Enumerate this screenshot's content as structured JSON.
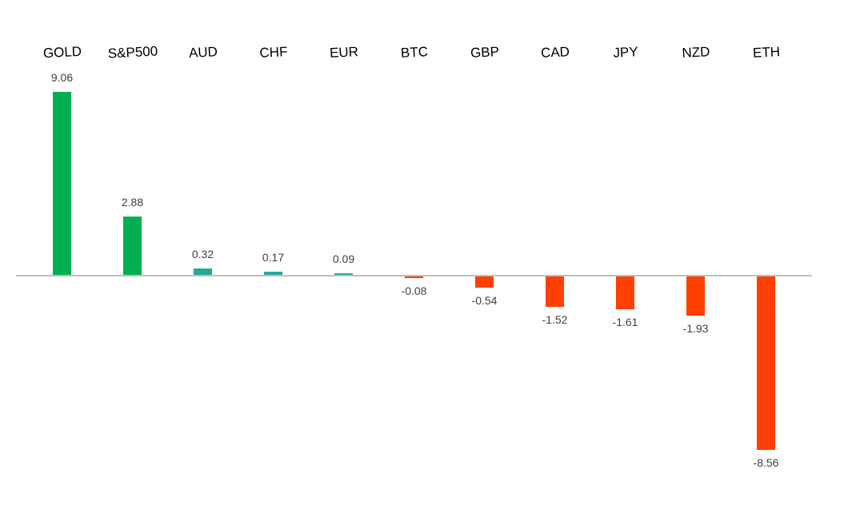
{
  "chart_data": {
    "type": "bar",
    "title": "",
    "xlabel": "",
    "ylabel": "",
    "categories": [
      "GOLD",
      "S&P500",
      "AUD",
      "CHF",
      "EUR",
      "BTC",
      "GBP",
      "CAD",
      "JPY",
      "NZD",
      "ETH"
    ],
    "values": [
      9.06,
      2.88,
      0.32,
      0.17,
      0.09,
      -0.08,
      -0.54,
      -1.52,
      -1.61,
      -1.93,
      -8.56
    ],
    "value_labels": [
      "9.06",
      "2.88",
      "0.32",
      "0.17",
      "0.09",
      "-0.08",
      "-0.54",
      "-1.52",
      "-1.61",
      "-1.93",
      "-8.56"
    ],
    "ylim": [
      -8.56,
      9.06
    ],
    "grid": false,
    "legend": "none",
    "category_labels_position": "top",
    "colors": {
      "positive": "#00b050",
      "positive_small": "#2aa79b",
      "negative": "#ff4000",
      "axis": "#bfbfbf",
      "label_text": "#404040"
    }
  }
}
